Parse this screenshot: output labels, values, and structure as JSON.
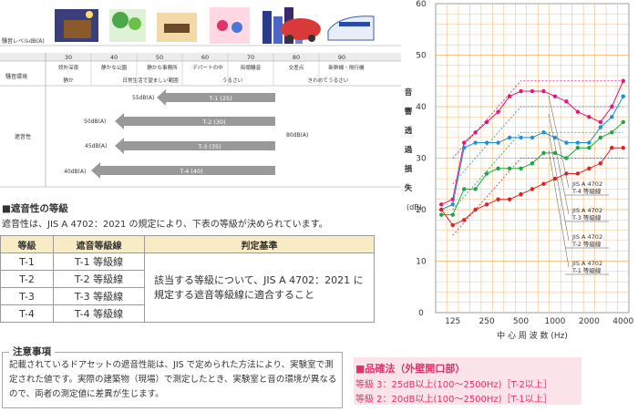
{
  "noise_table": {
    "row_header_level": "騒音レベルdB(A)",
    "levels": [
      "30",
      "40",
      "50",
      "60",
      "70",
      "80",
      "90"
    ],
    "row_header_env": "騒音環境",
    "environments": [
      "郊外深夜",
      "静かな公園",
      "静かな事務所",
      "デパートの中",
      "街頭騒音",
      "交差点",
      "新幹線・飛行機"
    ],
    "impressions": [
      "静か",
      "日常生活で望ましい範囲",
      "うるさい",
      "きわめてうるさい"
    ],
    "row_header_insulation": "遮音性",
    "source_level": "80dB(A)",
    "arrows": [
      {
        "label": "T-1 (25)",
        "result": "55dB(A)"
      },
      {
        "label": "T-2 (30)",
        "result": "50dB(A)"
      },
      {
        "label": "T-3 (35)",
        "result": "45dB(A)"
      },
      {
        "label": "T-4 (40)",
        "result": "40dB(A)"
      }
    ]
  },
  "grade_section": {
    "heading": "■遮音性の等級",
    "description": "遮音性は、JIS A 4702：2021 の規定により、下表の等級が決められています。",
    "columns": [
      "等級",
      "遮音等級線",
      "判定基準"
    ],
    "rows": [
      {
        "grade": "T-1",
        "line": "T-1 等級線"
      },
      {
        "grade": "T-2",
        "line": "T-2 等級線"
      },
      {
        "grade": "T-3",
        "line": "T-3 等級線"
      },
      {
        "grade": "T-4",
        "line": "T-4 等級線"
      }
    ],
    "criterion": "該当する等級について、JIS A 4702：2021 に規定する遮音等級線に適合すること"
  },
  "notes": {
    "title": "注意事項",
    "body": "記載されているドアセットの遮音性能は、JIS で定められた方法により、実験室で測定された値です。実際の建築物（現場）で測定したとき、実験室と音の環境が異なるので、両者の測定値に差異が生じます。"
  },
  "law": {
    "title": "■品確法（外壁開口部）",
    "line1": "等級 3：25dB以上(100～2500Hz)［T-2以上］",
    "line2": "等級 2：20dB以上(100～2500Hz)［T-1以上］"
  },
  "chart_data": {
    "type": "line",
    "ylabel": "音響透過損失 (dB)",
    "ylabel_chars": [
      "音",
      "響",
      "透",
      "過",
      "損",
      "失"
    ],
    "yunit": "(dB)",
    "xlabel": "中 心 周 波 数 (Hz)",
    "ylim": [
      0,
      60
    ],
    "yticks": [
      0,
      10,
      20,
      30,
      40,
      50,
      60
    ],
    "xticks": [
      "125",
      "250",
      "500",
      "1000",
      "2000",
      "4000"
    ],
    "x": [
      100,
      125,
      160,
      200,
      250,
      315,
      400,
      500,
      630,
      800,
      1000,
      1250,
      1600,
      2000,
      2500,
      3150,
      4000
    ],
    "series": [
      {
        "name": "T-4",
        "color": "#e0177a",
        "values": [
          21,
          22,
          33,
          35,
          37,
          39,
          42,
          43,
          43,
          43,
          42,
          41,
          39,
          38,
          37,
          40,
          45
        ]
      },
      {
        "name": "T-3",
        "color": "#1f8fd6",
        "values": [
          20,
          21,
          32,
          33,
          33,
          33,
          34,
          34,
          34,
          35,
          34,
          33,
          33,
          33,
          36,
          38,
          42
        ]
      },
      {
        "name": "T-2",
        "color": "#1aa83c",
        "values": [
          19,
          19,
          24,
          24,
          27,
          28,
          28,
          28,
          29,
          31,
          31,
          30,
          32,
          32,
          34,
          35,
          37
        ]
      },
      {
        "name": "T-1",
        "color": "#e02020",
        "values": [
          20,
          17,
          18,
          20,
          21,
          22,
          22,
          23,
          24,
          25,
          26,
          27,
          27,
          28,
          29,
          32,
          32
        ]
      }
    ],
    "grade_lines_labels": [
      {
        "std": "JIS A 4702",
        "name": "T-4 等級線"
      },
      {
        "std": "JIS A 4702",
        "name": "T-3 等級線"
      },
      {
        "std": "JIS A 4702",
        "name": "T-2 等級線"
      },
      {
        "std": "JIS A 4702",
        "name": "T-1 等級線"
      }
    ],
    "grade_lines": [
      {
        "color": "#e0177a",
        "points": [
          [
            125,
            30
          ],
          [
            500,
            45
          ],
          [
            4000,
            45
          ]
        ]
      },
      {
        "color": "#1f8fd6",
        "points": [
          [
            125,
            25
          ],
          [
            500,
            40
          ],
          [
            4000,
            40
          ]
        ]
      },
      {
        "color": "#1aa83c",
        "points": [
          [
            125,
            20
          ],
          [
            500,
            35
          ],
          [
            4000,
            35
          ]
        ]
      },
      {
        "color": "#e02020",
        "points": [
          [
            125,
            15
          ],
          [
            500,
            30
          ],
          [
            4000,
            30
          ]
        ]
      }
    ]
  }
}
